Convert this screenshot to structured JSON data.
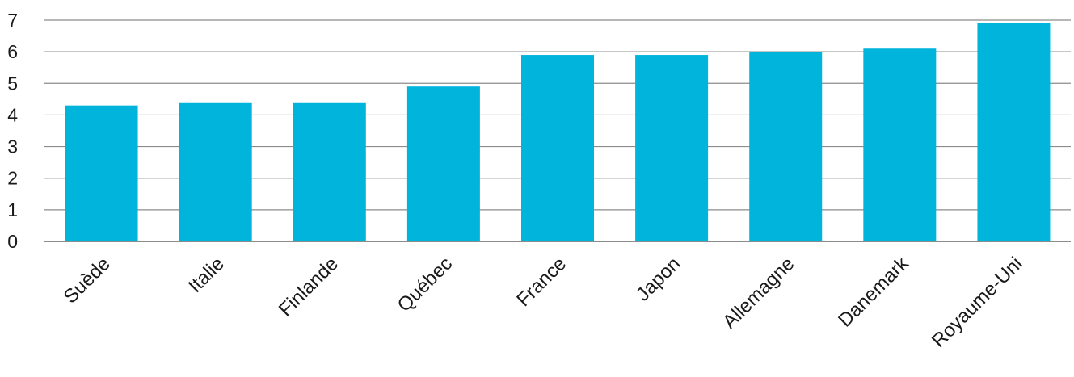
{
  "chart_data": {
    "type": "bar",
    "title": "",
    "xlabel": "",
    "ylabel": "",
    "categories": [
      "Suède",
      "Italie",
      "Finlande",
      "Québec",
      "France",
      "Japon",
      "Allemagne",
      "Danemark",
      "Royaume-Uni"
    ],
    "values": [
      4.3,
      4.4,
      4.4,
      4.9,
      5.9,
      5.9,
      6.0,
      6.1,
      6.9
    ],
    "ylim": [
      0,
      7
    ],
    "yticks": [
      0,
      1,
      2,
      3,
      4,
      5,
      6,
      7
    ],
    "grid": true,
    "legend": "none",
    "bar_color": "#00b4dc",
    "grid_color": "#8c8c8c"
  }
}
